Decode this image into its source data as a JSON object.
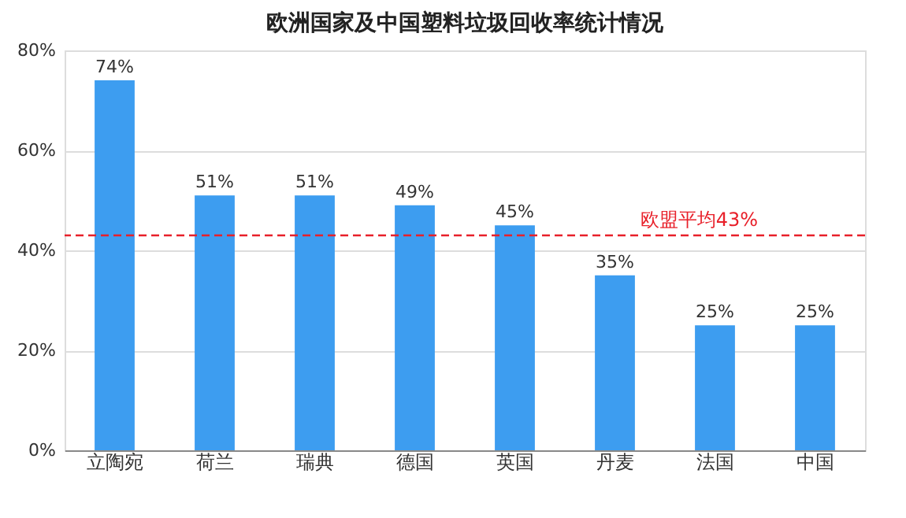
{
  "chart_data": {
    "type": "bar",
    "title": "欧洲国家及中国塑料垃圾回收率统计情况",
    "categories": [
      "立陶宛",
      "荷兰",
      "瑞典",
      "德国",
      "英国",
      "丹麦",
      "法国",
      "中国"
    ],
    "values": [
      74,
      51,
      51,
      49,
      45,
      35,
      25,
      25
    ],
    "value_labels": [
      "74%",
      "51%",
      "51%",
      "49%",
      "45%",
      "35%",
      "25%",
      "25%"
    ],
    "color": "#3d9df0",
    "ylim": [
      0,
      80
    ],
    "yticks": [
      {
        "value": 0,
        "label": "0%"
      },
      {
        "value": 20,
        "label": "20%"
      },
      {
        "value": 40,
        "label": "40%"
      },
      {
        "value": 60,
        "label": "60%"
      },
      {
        "value": 80,
        "label": "80%"
      }
    ],
    "grid": "y",
    "ref_lines": [
      {
        "axis": "y",
        "value": 43,
        "label": "欧盟平均43%",
        "color": "#e8202a",
        "line_style": "dashed"
      }
    ]
  }
}
